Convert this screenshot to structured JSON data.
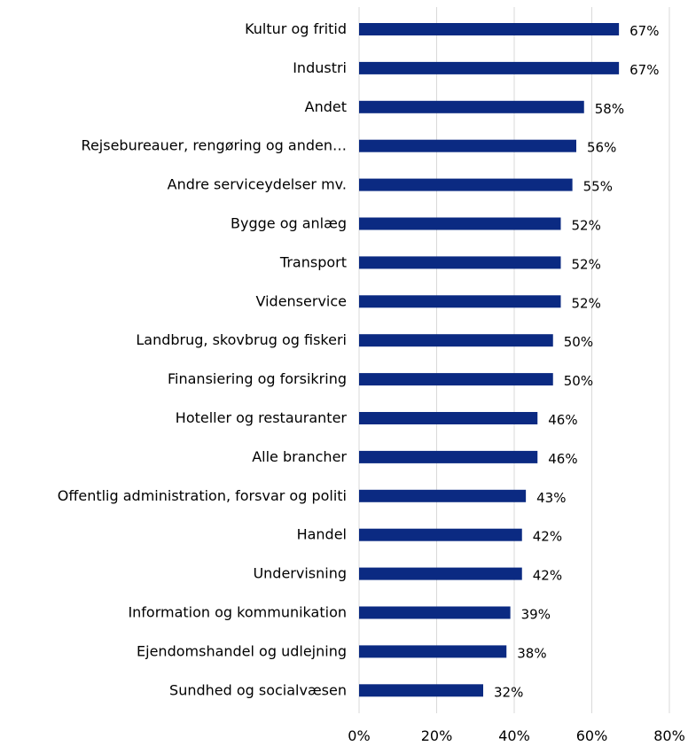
{
  "chart_data": {
    "type": "bar",
    "orientation": "horizontal",
    "title": "",
    "xlabel": "",
    "ylabel": "",
    "xlim": [
      0,
      80
    ],
    "x_ticks": [
      0,
      20,
      40,
      60,
      80
    ],
    "x_tick_labels": [
      "0%",
      "20%",
      "40%",
      "60%",
      "80%"
    ],
    "grid": true,
    "legend": "none",
    "bar_color": "#0b2a82",
    "categories": [
      "Kultur og fritid",
      "Industri",
      "Andet",
      "Rejsebureauer, rengøring og anden…",
      "Andre serviceydelser  mv.",
      "Bygge og anlæg",
      "Transport",
      "Videnservice",
      "Landbrug, skovbrug og fiskeri",
      "Finansiering og forsikring",
      "Hoteller og restauranter",
      "Alle brancher",
      "Offentlig administration, forsvar og politi",
      "Handel",
      "Undervisning",
      "Information og kommunikation",
      "Ejendomshandel og udlejning",
      "Sundhed og socialvæsen"
    ],
    "values": [
      67,
      67,
      58,
      56,
      55,
      52,
      52,
      52,
      50,
      50,
      46,
      46,
      43,
      42,
      42,
      39,
      38,
      32
    ],
    "data_labels": [
      "67%",
      "67%",
      "58%",
      "56%",
      "55%",
      "52%",
      "52%",
      "52%",
      "50%",
      "50%",
      "46%",
      "46%",
      "43%",
      "42%",
      "42%",
      "39%",
      "38%",
      "32%"
    ]
  }
}
